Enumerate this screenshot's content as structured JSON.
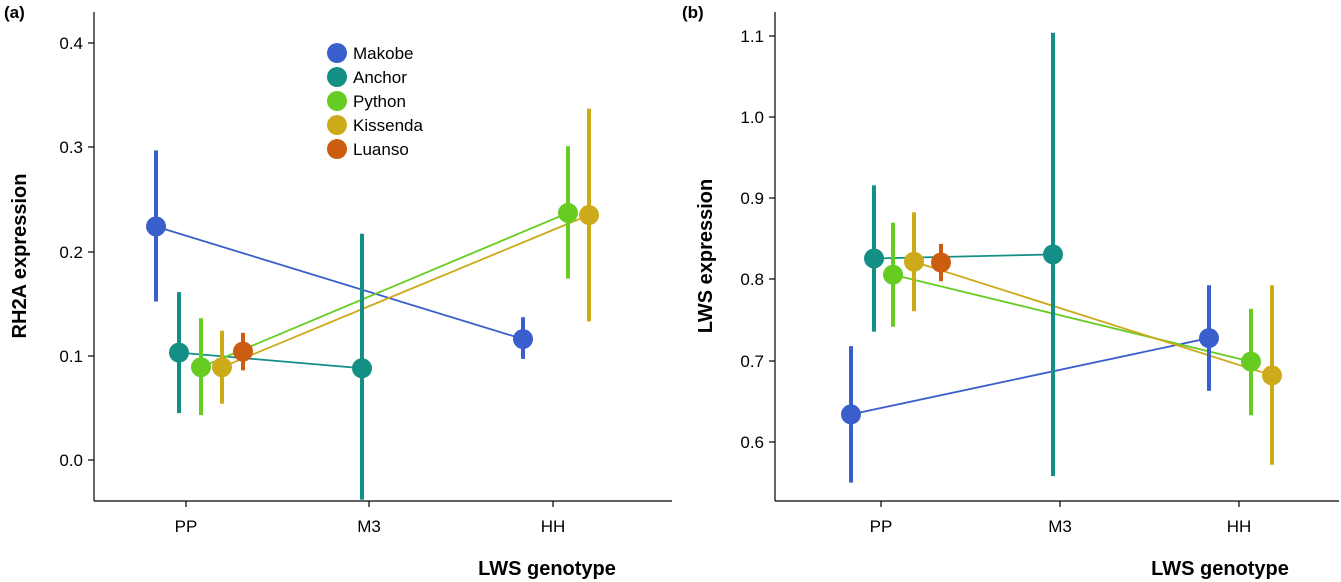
{
  "chart_data": [
    {
      "panel_label": "(a)",
      "type": "line",
      "xlabel": "LWS genotype",
      "ylabel": "RH2A expression",
      "categories": [
        "PP",
        "M3",
        "HH"
      ],
      "ylim": [
        -0.04,
        0.43
      ],
      "yticks": [
        "0.0",
        "0.1",
        "0.2",
        "0.3",
        "0.4"
      ],
      "grid": false,
      "legend_position": "top-center",
      "series": [
        {
          "name": "Makobe",
          "color": "#3A5FCD",
          "points": [
            {
              "x": "PP",
              "y": 0.224,
              "lo": 0.152,
              "hi": 0.297
            },
            {
              "x": "HH",
              "y": 0.116,
              "lo": 0.097,
              "hi": 0.137
            }
          ]
        },
        {
          "name": "Anchor",
          "color": "#138F86",
          "points": [
            {
              "x": "PP",
              "y": 0.103,
              "lo": 0.045,
              "hi": 0.161
            },
            {
              "x": "M3",
              "y": 0.088,
              "lo": -0.038,
              "hi": 0.217
            }
          ]
        },
        {
          "name": "Python",
          "color": "#66CC22",
          "points": [
            {
              "x": "PP",
              "y": 0.089,
              "lo": 0.043,
              "hi": 0.136
            },
            {
              "x": "HH",
              "y": 0.237,
              "lo": 0.174,
              "hi": 0.301
            }
          ]
        },
        {
          "name": "Kissenda",
          "color": "#CCAA19",
          "points": [
            {
              "x": "PP",
              "y": 0.089,
              "lo": 0.054,
              "hi": 0.124
            },
            {
              "x": "HH",
              "y": 0.235,
              "lo": 0.133,
              "hi": 0.337
            }
          ]
        },
        {
          "name": "Luanso",
          "color": "#CC5D10",
          "points": [
            {
              "x": "PP",
              "y": 0.104,
              "lo": 0.086,
              "hi": 0.122
            }
          ]
        }
      ]
    },
    {
      "panel_label": "(b)",
      "type": "line",
      "xlabel": "LWS genotype",
      "ylabel": "LWS expression",
      "categories": [
        "PP",
        "M3",
        "HH"
      ],
      "ylim": [
        0.53,
        1.13
      ],
      "yticks": [
        "0.6",
        "0.7",
        "0.8",
        "0.9",
        "1.0",
        "1.1"
      ],
      "grid": false,
      "series": [
        {
          "name": "Makobe",
          "color": "#3A5FCD",
          "points": [
            {
              "x": "PP",
              "y": 0.634,
              "lo": 0.55,
              "hi": 0.718
            },
            {
              "x": "HH",
              "y": 0.728,
              "lo": 0.663,
              "hi": 0.793
            }
          ]
        },
        {
          "name": "Anchor",
          "color": "#138F86",
          "points": [
            {
              "x": "PP",
              "y": 0.826,
              "lo": 0.736,
              "hi": 0.916
            },
            {
              "x": "M3",
              "y": 0.831,
              "lo": 0.558,
              "hi": 1.104
            }
          ]
        },
        {
          "name": "Python",
          "color": "#66CC22",
          "points": [
            {
              "x": "PP",
              "y": 0.806,
              "lo": 0.742,
              "hi": 0.87
            },
            {
              "x": "HH",
              "y": 0.699,
              "lo": 0.633,
              "hi": 0.764
            }
          ]
        },
        {
          "name": "Kissenda",
          "color": "#CCAA19",
          "points": [
            {
              "x": "PP",
              "y": 0.822,
              "lo": 0.761,
              "hi": 0.883
            },
            {
              "x": "HH",
              "y": 0.682,
              "lo": 0.572,
              "hi": 0.793
            }
          ]
        },
        {
          "name": "Luanso",
          "color": "#CC5D10",
          "points": [
            {
              "x": "PP",
              "y": 0.821,
              "lo": 0.798,
              "hi": 0.844
            }
          ]
        }
      ]
    }
  ]
}
